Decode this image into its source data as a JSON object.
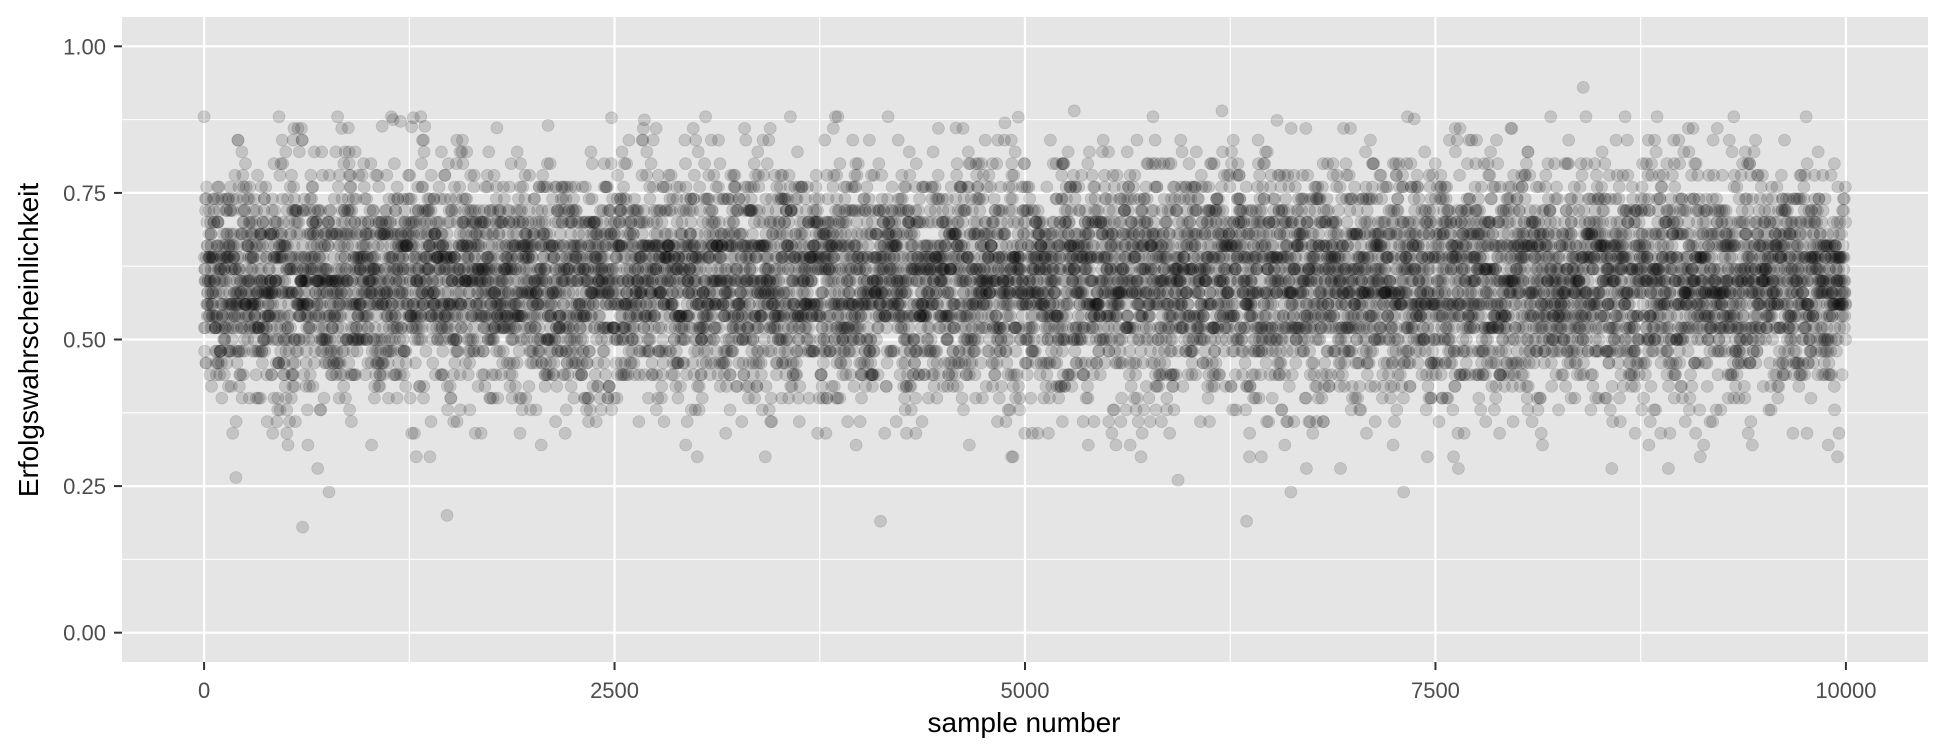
{
  "chart_data": {
    "type": "scatter",
    "title": "",
    "xlabel": "sample number",
    "ylabel": "Erfolgswahrscheinlichkeit",
    "xlim": [
      -500,
      10500
    ],
    "ylim": [
      -0.05,
      1.05
    ],
    "x_ticks": [
      0,
      2500,
      5000,
      7500,
      10000
    ],
    "x_tick_labels": [
      "0",
      "2500",
      "5000",
      "7500",
      "10000"
    ],
    "x_minor_ticks": [
      1250,
      3750,
      6250,
      8750
    ],
    "y_ticks": [
      0,
      0.25,
      0.5,
      0.75,
      1.0
    ],
    "y_tick_labels": [
      "0.00",
      "0.25",
      "0.50",
      "0.75",
      "1.00"
    ],
    "y_minor_ticks": [
      0.125,
      0.375,
      0.625,
      0.875
    ],
    "grid": true,
    "legend": "none",
    "point_color": "#000000",
    "point_alpha": 0.15,
    "panel_background": "#e5e5e5",
    "grid_color": "#ffffff",
    "series": [
      {
        "x_range": [
          0,
          10000
        ],
        "n_points": 10000,
        "y_center": 0.6,
        "y_dense_band": [
          0.4,
          0.78
        ],
        "y_min_observed": 0.18,
        "y_max_observed": 0.93,
        "notable_points": [
          {
            "x": 600,
            "y": 0.18
          },
          {
            "x": 1480,
            "y": 0.2
          },
          {
            "x": 4120,
            "y": 0.19
          },
          {
            "x": 6350,
            "y": 0.19
          },
          {
            "x": 8400,
            "y": 0.93
          },
          {
            "x": 5300,
            "y": 0.89
          },
          {
            "x": 6200,
            "y": 0.89
          }
        ]
      }
    ]
  }
}
